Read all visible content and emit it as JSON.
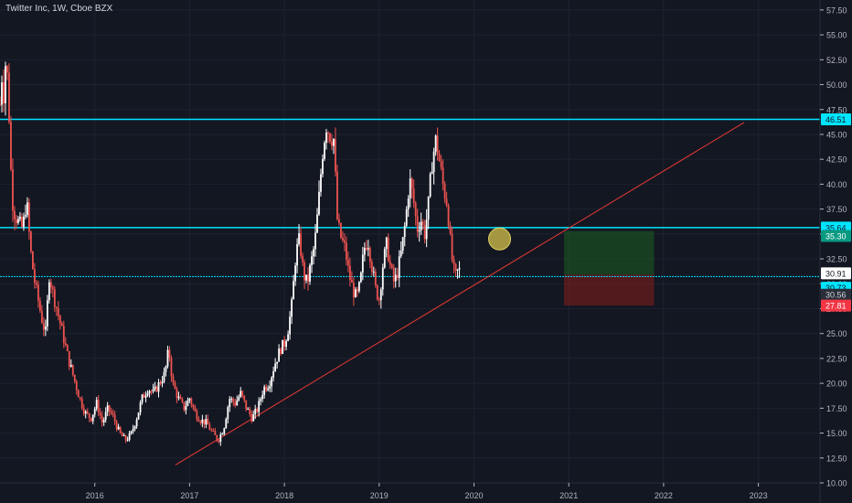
{
  "header": {
    "title": "Twitter Inc, 1W, Cboe BZX"
  },
  "colors": {
    "background": "#131722",
    "grid": "#1e2230",
    "axis_text": "#b2b5be",
    "up_candle": "#ffffff",
    "down_candle": "#ef5350",
    "level_line": "#00e5ff",
    "trend_line": "#e53935",
    "target_zone": "#1b5e20",
    "stop_zone": "#7f1d1d",
    "marker_circle": "#c9b84a"
  },
  "chart_data": {
    "type": "candlestick",
    "title": "Twitter Inc, 1W, Cboe BZX",
    "x_ticks": [
      "2016",
      "2017",
      "2018",
      "2019",
      "2020",
      "2021",
      "2022",
      "2023"
    ],
    "y_ticks": [
      "10.00",
      "12.50",
      "15.00",
      "17.50",
      "20.00",
      "22.50",
      "25.00",
      "27.50",
      "30.00",
      "32.50",
      "35.00",
      "37.50",
      "40.00",
      "42.50",
      "45.00",
      "47.50",
      "50.00",
      "52.50",
      "55.00",
      "57.50"
    ],
    "ylim": [
      10,
      58.5
    ],
    "xlim": [
      2015.0,
      2023.65
    ],
    "grid": true,
    "price_path": [
      [
        2015.0,
        48.0
      ],
      [
        2015.02,
        51.0
      ],
      [
        2015.04,
        49.0
      ],
      [
        2015.06,
        52.5
      ],
      [
        2015.08,
        50.5
      ],
      [
        2015.1,
        46.0
      ],
      [
        2015.12,
        40.0
      ],
      [
        2015.14,
        37.5
      ],
      [
        2015.16,
        37.0
      ],
      [
        2015.2,
        36.0
      ],
      [
        2015.24,
        35.5
      ],
      [
        2015.28,
        38.5
      ],
      [
        2015.32,
        33.5
      ],
      [
        2015.36,
        30.5
      ],
      [
        2015.4,
        28.5
      ],
      [
        2015.44,
        26.5
      ],
      [
        2015.48,
        25.0
      ],
      [
        2015.52,
        31.0
      ],
      [
        2015.56,
        29.0
      ],
      [
        2015.6,
        27.5
      ],
      [
        2015.66,
        25.0
      ],
      [
        2015.72,
        22.5
      ],
      [
        2015.78,
        20.5
      ],
      [
        2015.84,
        18.5
      ],
      [
        2015.9,
        17.0
      ],
      [
        2015.96,
        16.5
      ],
      [
        2016.02,
        18.0
      ],
      [
        2016.08,
        16.0
      ],
      [
        2016.14,
        17.5
      ],
      [
        2016.2,
        16.5
      ],
      [
        2016.26,
        15.0
      ],
      [
        2016.32,
        14.3
      ],
      [
        2016.38,
        14.8
      ],
      [
        2016.44,
        16.5
      ],
      [
        2016.5,
        18.5
      ],
      [
        2016.56,
        19.5
      ],
      [
        2016.62,
        19.0
      ],
      [
        2016.68,
        20.0
      ],
      [
        2016.74,
        21.0
      ],
      [
        2016.78,
        23.5
      ],
      [
        2016.82,
        20.0
      ],
      [
        2016.88,
        18.5
      ],
      [
        2016.94,
        17.5
      ],
      [
        2017.0,
        18.5
      ],
      [
        2017.06,
        17.0
      ],
      [
        2017.12,
        16.3
      ],
      [
        2017.18,
        16.0
      ],
      [
        2017.24,
        15.0
      ],
      [
        2017.3,
        14.3
      ],
      [
        2017.36,
        15.5
      ],
      [
        2017.42,
        18.5
      ],
      [
        2017.48,
        18.0
      ],
      [
        2017.54,
        19.0
      ],
      [
        2017.6,
        17.5
      ],
      [
        2017.66,
        16.5
      ],
      [
        2017.72,
        17.5
      ],
      [
        2017.78,
        19.5
      ],
      [
        2017.84,
        20.0
      ],
      [
        2017.9,
        22.0
      ],
      [
        2017.96,
        23.5
      ],
      [
        2018.0,
        24.0
      ],
      [
        2018.04,
        25.5
      ],
      [
        2018.08,
        28.0
      ],
      [
        2018.12,
        33.0
      ],
      [
        2018.16,
        34.5
      ],
      [
        2018.2,
        31.0
      ],
      [
        2018.24,
        30.0
      ],
      [
        2018.28,
        32.0
      ],
      [
        2018.32,
        34.0
      ],
      [
        2018.36,
        38.0
      ],
      [
        2018.4,
        43.0
      ],
      [
        2018.44,
        46.0
      ],
      [
        2018.48,
        45.0
      ],
      [
        2018.52,
        44.5
      ],
      [
        2018.56,
        36.0
      ],
      [
        2018.6,
        34.5
      ],
      [
        2018.64,
        33.5
      ],
      [
        2018.68,
        31.0
      ],
      [
        2018.72,
        29.5
      ],
      [
        2018.76,
        28.5
      ],
      [
        2018.8,
        30.0
      ],
      [
        2018.84,
        33.5
      ],
      [
        2018.88,
        34.5
      ],
      [
        2018.92,
        32.0
      ],
      [
        2018.96,
        29.5
      ],
      [
        2019.0,
        28.5
      ],
      [
        2019.04,
        32.0
      ],
      [
        2019.08,
        34.0
      ],
      [
        2019.12,
        31.5
      ],
      [
        2019.16,
        30.0
      ],
      [
        2019.2,
        31.5
      ],
      [
        2019.24,
        33.5
      ],
      [
        2019.28,
        36.5
      ],
      [
        2019.32,
        40.5
      ],
      [
        2019.36,
        38.5
      ],
      [
        2019.4,
        35.5
      ],
      [
        2019.44,
        36.5
      ],
      [
        2019.48,
        35.0
      ],
      [
        2019.52,
        38.0
      ],
      [
        2019.56,
        42.5
      ],
      [
        2019.6,
        44.5
      ],
      [
        2019.64,
        42.0
      ],
      [
        2019.68,
        39.5
      ],
      [
        2019.72,
        38.0
      ],
      [
        2019.76,
        33.0
      ],
      [
        2019.8,
        30.5
      ],
      [
        2019.84,
        31.5
      ],
      [
        2019.86,
        30.9
      ]
    ],
    "levels": [
      {
        "label": "46.51",
        "value": 46.51,
        "style": "line"
      },
      {
        "label": "35.64",
        "value": 35.64,
        "style": "line"
      },
      {
        "label": "30.73",
        "value": 30.73,
        "style": "line"
      }
    ],
    "trend_line": {
      "from": [
        2016.85,
        11.8
      ],
      "to": [
        2022.85,
        46.2
      ]
    },
    "position_tool": {
      "x_range": [
        2020.95,
        2021.9
      ],
      "entry": 30.91,
      "target": 35.3,
      "stop": 27.81
    },
    "marker_circle": {
      "x": 2020.27,
      "y": 34.5
    },
    "price_labels": [
      {
        "label": "46.51",
        "value": 46.51,
        "bg": "#00e5ff",
        "fg": "#131722"
      },
      {
        "label": "35.64",
        "value": 35.64,
        "bg": "#00e5ff",
        "fg": "#131722"
      },
      {
        "label": "35.30",
        "value": 34.8,
        "bg": "#089981",
        "fg": "#ffffff"
      },
      {
        "label": "30.91",
        "value": 31.05,
        "bg": "#ffffff",
        "fg": "#131722"
      },
      {
        "label": "30.73",
        "value": 29.6,
        "bg": "#00e5ff",
        "fg": "#131722"
      },
      {
        "label": "30.56",
        "value": 28.9,
        "bg": "#2a2e39",
        "fg": "#d1d4dc"
      },
      {
        "label": "27.81",
        "value": 27.81,
        "bg": "#f23645",
        "fg": "#ffffff"
      }
    ]
  }
}
